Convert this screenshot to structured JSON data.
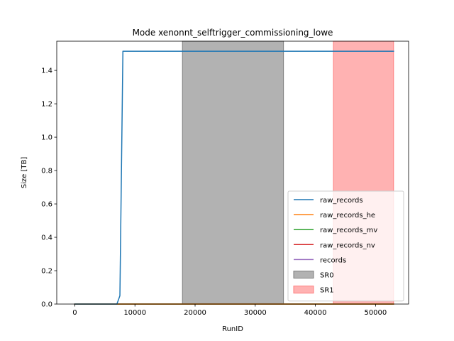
{
  "chart_data": {
    "type": "line",
    "title": "Mode xenonnt_selftrigger_commissioning_lowe",
    "xlabel": "RunID",
    "ylabel": "Size [TB]",
    "xlim": [
      -3000,
      55500
    ],
    "ylim": [
      0,
      1.575
    ],
    "xticks": [
      0,
      10000,
      20000,
      30000,
      40000,
      50000
    ],
    "xtick_labels": [
      "0",
      "10000",
      "20000",
      "30000",
      "40000",
      "50000"
    ],
    "yticks": [
      0,
      0.2,
      0.4,
      0.6,
      0.8,
      1.0,
      1.2,
      1.4
    ],
    "ytick_labels": [
      "0.0",
      "0.2",
      "0.4",
      "0.6",
      "0.8",
      "1.0",
      "1.2",
      "1.4"
    ],
    "grid": false,
    "legend_position": "lower-right",
    "series": [
      {
        "name": "raw_records",
        "color": "#1f77b4",
        "x": [
          0,
          7000,
          7500,
          8000,
          53000
        ],
        "y": [
          0,
          0,
          0.05,
          1.515,
          1.515
        ]
      },
      {
        "name": "raw_records_he",
        "color": "#ff7f0e",
        "x": [
          0,
          53000
        ],
        "y": [
          0,
          0
        ]
      },
      {
        "name": "raw_records_mv",
        "color": "#2ca02c",
        "x": [
          0,
          53000
        ],
        "y": [
          0,
          0
        ]
      },
      {
        "name": "raw_records_nv",
        "color": "#d62728",
        "x": [
          0,
          53000
        ],
        "y": [
          0,
          0
        ]
      },
      {
        "name": "records",
        "color": "#9467bd",
        "x": [
          0,
          53000
        ],
        "y": [
          0,
          0
        ]
      }
    ],
    "spans": [
      {
        "name": "SR0",
        "x_start": 17900,
        "x_end": 34700,
        "color": "#7f7f7f",
        "opacity": 0.6,
        "edge_color": "#7f7f7f"
      },
      {
        "name": "SR1",
        "x_start": 43000,
        "x_end": 53000,
        "color": "#ff0000",
        "opacity": 0.3,
        "edge_color": "#ff7f7f"
      }
    ]
  }
}
